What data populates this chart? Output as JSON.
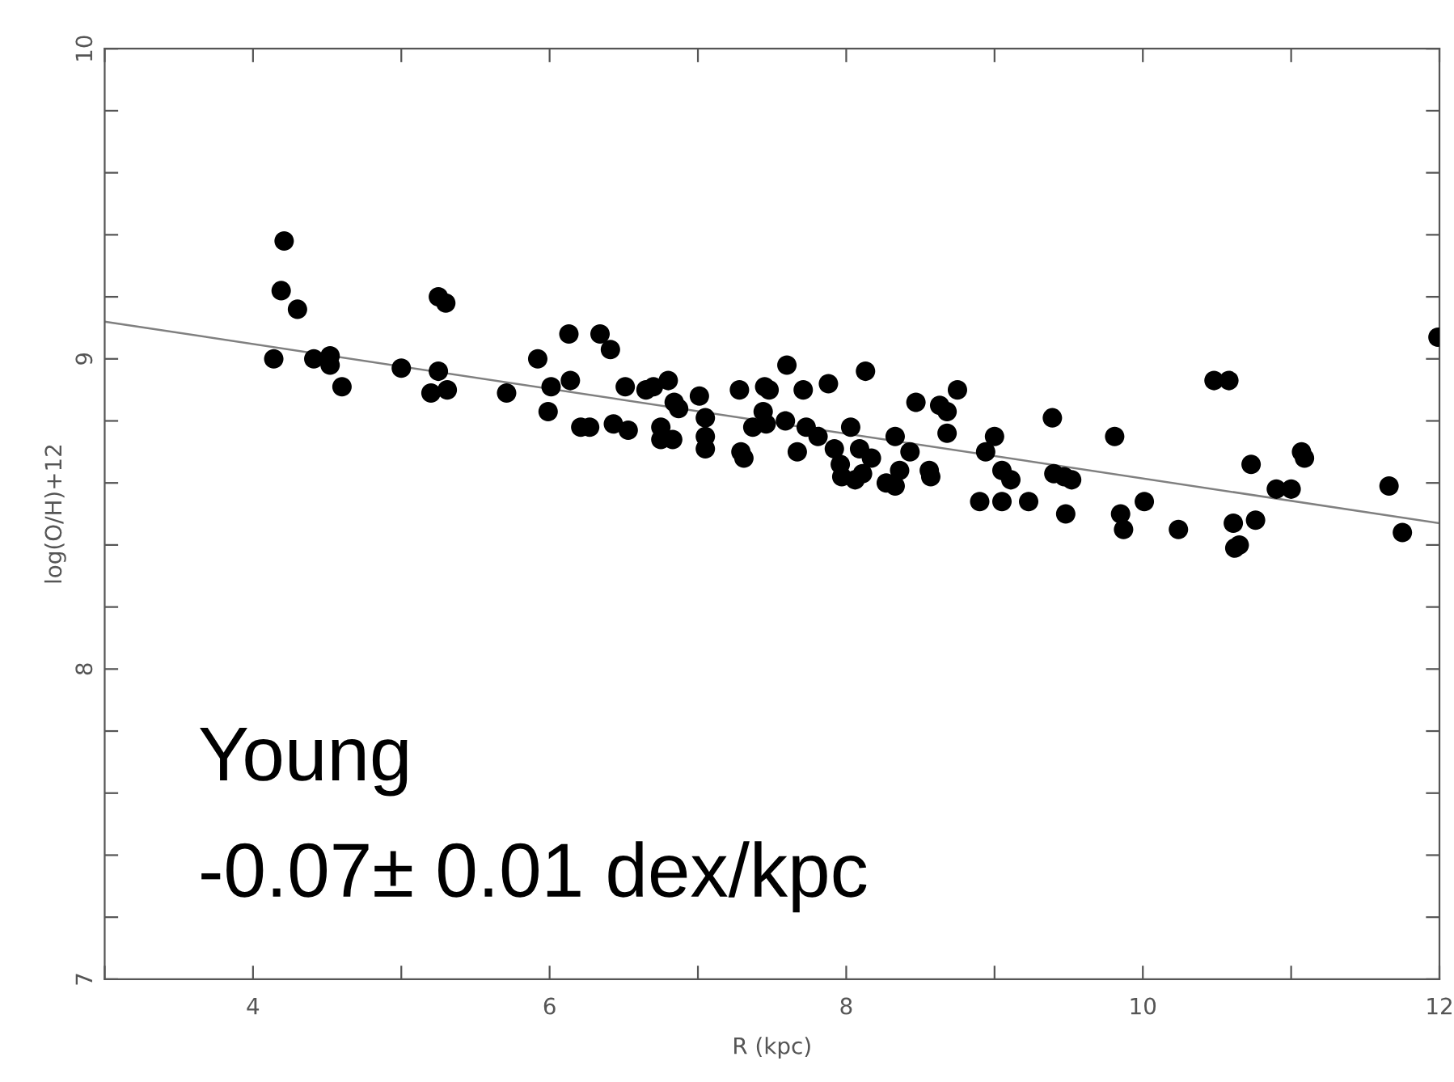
{
  "chart_data": {
    "type": "scatter",
    "xlabel": "R (kpc)",
    "ylabel": "log(O/H)+12",
    "xlim": [
      3,
      12
    ],
    "ylim": [
      7,
      10
    ],
    "xticks": [
      {
        "value": 3,
        "label": null
      },
      4,
      {
        "value": 5,
        "label": null
      },
      6,
      {
        "value": 7,
        "label": null
      },
      8,
      {
        "value": 9,
        "label": null
      },
      10,
      {
        "value": 11,
        "label": null
      },
      12
    ],
    "yticks": [
      7,
      {
        "value": 7.2,
        "label": null
      },
      {
        "value": 7.4,
        "label": null
      },
      {
        "value": 7.6,
        "label": null
      },
      {
        "value": 7.8,
        "label": null
      },
      8,
      {
        "value": 8.2,
        "label": null
      },
      {
        "value": 8.4,
        "label": null
      },
      {
        "value": 8.6,
        "label": null
      },
      {
        "value": 8.8,
        "label": null
      },
      9,
      {
        "value": 9.2,
        "label": null
      },
      {
        "value": 9.4,
        "label": null
      },
      {
        "value": 9.6,
        "label": null
      },
      {
        "value": 9.8,
        "label": null
      },
      10
    ],
    "grid": false,
    "marker": "circle",
    "series": [
      {
        "color": "#000000",
        "x": [
          4.14,
          4.21,
          4.19,
          4.3,
          4.41,
          4.52,
          4.52,
          4.6,
          5.0,
          5.2,
          5.25,
          5.3,
          5.25,
          5.31,
          5.71,
          5.92,
          6.01,
          5.99,
          6.13,
          6.14,
          6.21,
          6.27,
          6.34,
          6.41,
          6.43,
          6.53,
          6.51,
          6.65,
          6.7,
          6.8,
          6.75,
          6.75,
          6.83,
          6.84,
          6.87,
          7.01,
          7.05,
          7.05,
          7.05,
          7.28,
          7.29,
          7.31,
          7.45,
          7.48,
          7.44,
          7.37,
          7.46,
          7.6,
          7.59,
          7.71,
          7.73,
          7.67,
          7.81,
          7.88,
          7.92,
          7.96,
          7.97,
          8.03,
          8.06,
          8.09,
          8.13,
          8.17,
          8.11,
          8.27,
          8.33,
          8.33,
          8.43,
          8.36,
          8.47,
          8.56,
          8.57,
          8.63,
          8.68,
          8.68,
          8.75,
          8.9,
          8.94,
          9.0,
          9.05,
          9.05,
          9.11,
          9.23,
          9.39,
          9.4,
          9.47,
          9.52,
          9.48,
          9.81,
          9.85,
          9.87,
          10.01,
          10.24,
          10.48,
          10.58,
          10.61,
          10.62,
          10.65,
          10.73,
          10.76,
          10.9,
          11.0,
          11.07,
          11.09,
          11.66,
          11.75,
          11.99
        ],
        "values": [
          9.0,
          9.38,
          9.22,
          9.16,
          9.0,
          9.01,
          8.98,
          8.91,
          8.97,
          8.89,
          9.2,
          9.18,
          8.96,
          8.9,
          8.89,
          9.0,
          8.91,
          8.83,
          9.08,
          8.93,
          8.78,
          8.78,
          9.08,
          9.03,
          8.79,
          8.77,
          8.91,
          8.9,
          8.91,
          8.93,
          8.78,
          8.74,
          8.74,
          8.86,
          8.84,
          8.88,
          8.81,
          8.75,
          8.71,
          8.9,
          8.7,
          8.68,
          8.91,
          8.9,
          8.83,
          8.78,
          8.79,
          8.98,
          8.8,
          8.9,
          8.78,
          8.7,
          8.75,
          8.92,
          8.71,
          8.66,
          8.62,
          8.78,
          8.61,
          8.71,
          8.96,
          8.68,
          8.63,
          8.6,
          8.59,
          8.75,
          8.7,
          8.64,
          8.86,
          8.64,
          8.62,
          8.85,
          8.83,
          8.76,
          8.9,
          8.54,
          8.7,
          8.75,
          8.64,
          8.54,
          8.61,
          8.54,
          8.81,
          8.63,
          8.62,
          8.61,
          8.5,
          8.75,
          8.5,
          8.45,
          8.54,
          8.45,
          8.93,
          8.93,
          8.47,
          8.39,
          8.4,
          8.66,
          8.48,
          8.58,
          8.58,
          8.7,
          8.68,
          8.59,
          8.44,
          9.07
        ]
      },
      {
        "type": "line",
        "color": "#808080",
        "marker": "none",
        "line_style": "solid",
        "x": [
          3,
          12
        ],
        "values": [
          9.12,
          8.47
        ]
      }
    ],
    "annotations": [
      "Young",
      "-0.07± 0.01 dex/kpc"
    ]
  }
}
